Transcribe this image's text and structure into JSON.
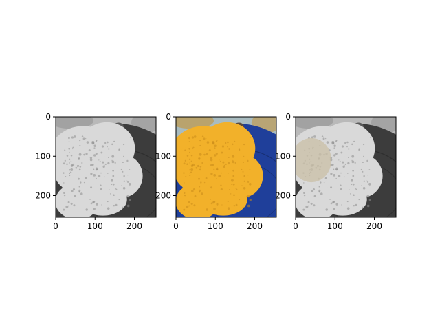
{
  "figure": {
    "background": "#ffffff"
  },
  "chart_data": [
    {
      "type": "image",
      "panel": "grayscale",
      "xlim": [
        0,
        255
      ],
      "ylim": [
        255,
        0
      ],
      "xticks": [
        0,
        100,
        200
      ],
      "yticks": [
        0,
        100,
        200
      ],
      "xtick_labels": [
        "0",
        "100",
        "200"
      ],
      "ytick_labels": [
        "0",
        "100",
        "200"
      ],
      "palette": {
        "bg": "#b9b9b9",
        "plate": "#3c3c3c",
        "food": "#d9d9d9",
        "shadow": "#8c8c8c",
        "flower": "#5a5a5a",
        "tint": null
      }
    },
    {
      "type": "image",
      "panel": "color",
      "xlim": [
        0,
        255
      ],
      "ylim": [
        255,
        0
      ],
      "xticks": [
        0,
        100,
        200
      ],
      "yticks": [
        0,
        100,
        200
      ],
      "xtick_labels": [
        "0",
        "100",
        "200"
      ],
      "ytick_labels": [
        "0",
        "100",
        "200"
      ],
      "palette": {
        "bg": "#a9bcc0",
        "plate": "#1f3f9a",
        "food": "#f2b12a",
        "shadow": "#c98a1a",
        "flower": "#5b4a3c",
        "tint": null
      }
    },
    {
      "type": "image",
      "panel": "grayscale-with-tinted-region",
      "xlim": [
        0,
        255
      ],
      "ylim": [
        255,
        0
      ],
      "xticks": [
        0,
        100,
        200
      ],
      "yticks": [
        0,
        100,
        200
      ],
      "xtick_labels": [
        "0",
        "100",
        "200"
      ],
      "ytick_labels": [
        "0",
        "100",
        "200"
      ],
      "palette": {
        "bg": "#b9b9b9",
        "plate": "#3c3c3c",
        "food": "#d9d9d9",
        "shadow": "#8c8c8c",
        "flower": "#5a5a5a",
        "tint": "#c9bfa6"
      }
    }
  ]
}
